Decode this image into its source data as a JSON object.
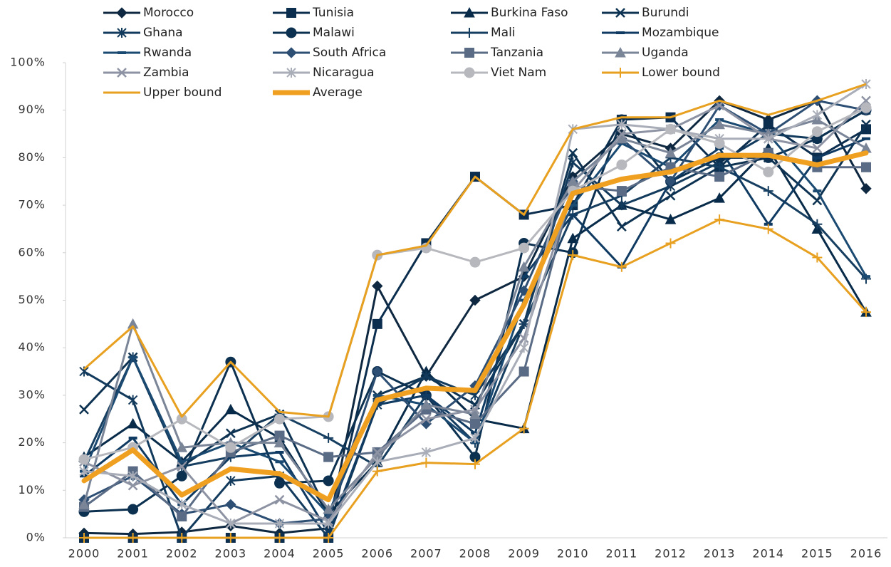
{
  "chart_data": {
    "type": "line",
    "categories": [
      "2000",
      "2001",
      "2002",
      "2003",
      "2004",
      "2005",
      "2006",
      "2007",
      "2008",
      "2009",
      "2010",
      "2011",
      "2012",
      "2013",
      "2014",
      "2015",
      "2016"
    ],
    "ylim": [
      0,
      100
    ],
    "yticks": [
      {
        "value": 0,
        "label": "0%"
      },
      {
        "value": 10,
        "label": "10%"
      },
      {
        "value": 20,
        "label": "20%"
      },
      {
        "value": 30,
        "label": "30%"
      },
      {
        "value": 40,
        "label": "40%"
      },
      {
        "value": 50,
        "label": "50%"
      },
      {
        "value": 60,
        "label": "60%"
      },
      {
        "value": 70,
        "label": "70%"
      },
      {
        "value": 80,
        "label": "80%"
      },
      {
        "value": 90,
        "label": "90%"
      },
      {
        "value": 100,
        "label": "100%"
      }
    ],
    "legend": "top",
    "series": [
      {
        "name": "Morocco",
        "color": "#0e2841",
        "marker": "diamond",
        "values": [
          1,
          0.8,
          1.2,
          2.5,
          1,
          2,
          53,
          34,
          50,
          55,
          76,
          85,
          82,
          92,
          88,
          92,
          73.5
        ]
      },
      {
        "name": "Tunisia",
        "color": "#0b2d4e",
        "marker": "square",
        "values": [
          0,
          0,
          0,
          0,
          0,
          0,
          45,
          62,
          76,
          68,
          70,
          88,
          88.5,
          78,
          87,
          80,
          86
        ]
      },
      {
        "name": "Burkina Faso",
        "color": "#082b4a",
        "marker": "triangle",
        "values": [
          17,
          24,
          16,
          27,
          21,
          5,
          16,
          35,
          25,
          23,
          63,
          70,
          67,
          71.5,
          82,
          65,
          47.5
        ]
      },
      {
        "name": "Burundi",
        "color": "#0e3352",
        "marker": "x",
        "values": [
          27,
          38,
          15,
          22,
          26,
          5,
          30,
          34,
          28,
          45,
          81,
          65.5,
          72,
          78,
          80,
          71,
          87
        ]
      },
      {
        "name": "Ghana",
        "color": "#123a5c",
        "marker": "asterisk",
        "values": [
          35,
          29,
          0,
          12,
          13,
          0,
          28,
          34,
          30,
          45,
          79,
          70,
          74,
          79,
          85,
          84,
          90
        ]
      },
      {
        "name": "Malawi",
        "color": "#0c3050",
        "marker": "circle",
        "values": [
          5.5,
          6,
          13,
          37,
          11.5,
          12,
          35,
          30,
          17,
          62,
          60,
          88,
          75,
          80,
          80,
          84,
          90
        ]
      },
      {
        "name": "Mali",
        "color": "#163e60",
        "marker": "plus",
        "values": [
          16,
          38,
          15,
          17,
          26,
          21,
          15,
          30,
          20,
          45,
          68,
          72,
          80,
          78,
          73,
          66,
          54.5
        ]
      },
      {
        "name": "Mozambique",
        "color": "#0f3a62",
        "marker": "dash",
        "values": [
          13,
          21,
          7,
          17,
          18,
          1,
          28,
          30,
          22,
          55,
          68,
          57,
          75,
          82,
          66,
          80,
          84
        ]
      },
      {
        "name": "Rwanda",
        "color": "#1a4a72",
        "marker": "dash",
        "values": [
          14,
          38,
          16,
          20,
          16,
          5,
          30,
          28,
          20,
          50,
          70,
          83,
          78,
          88,
          85,
          73,
          55
        ]
      },
      {
        "name": "South Africa",
        "color": "#2e4f74",
        "marker": "diamond",
        "values": [
          8,
          13,
          5,
          7,
          3,
          4,
          35,
          24,
          32,
          52,
          75,
          84,
          75,
          91,
          85,
          92,
          90
        ]
      },
      {
        "name": "Tanzania",
        "color": "#5a6b85",
        "marker": "square",
        "values": [
          6.5,
          14,
          4.5,
          18,
          21.5,
          17,
          18,
          27,
          24,
          35,
          74,
          73,
          78,
          76,
          81,
          78,
          78
        ]
      },
      {
        "name": "Uganda",
        "color": "#7a8598",
        "marker": "triangle",
        "values": [
          7,
          45,
          19,
          20,
          20,
          6,
          17,
          28,
          26,
          57,
          75,
          84,
          81,
          87,
          85,
          88,
          82
        ]
      },
      {
        "name": "Zambia",
        "color": "#8d93a3",
        "marker": "x",
        "values": [
          16,
          11,
          15,
          3,
          8,
          3.5,
          18,
          25,
          27,
          42,
          73,
          85,
          86,
          91,
          84,
          82,
          92
        ]
      },
      {
        "name": "Nicaragua",
        "color": "#a8adb8",
        "marker": "asterisk",
        "values": [
          14,
          13,
          7,
          3,
          3,
          3,
          16,
          18,
          21,
          40,
          86,
          87,
          86,
          84,
          84,
          89,
          95.5
        ]
      },
      {
        "name": "Viet Nam",
        "color": "#b6b8bd",
        "marker": "circle",
        "values": [
          16.5,
          19,
          25,
          19,
          25,
          25.5,
          59.5,
          61,
          58,
          61,
          73,
          78.5,
          86,
          83,
          77,
          85.5,
          90.5
        ]
      },
      {
        "name": "Lower bound",
        "color": "#e8a020",
        "marker": "plus",
        "values": [
          0,
          0,
          0,
          0,
          0,
          0,
          14,
          15.8,
          15.5,
          23,
          59.5,
          57,
          62,
          67,
          65,
          59,
          47.5
        ]
      },
      {
        "name": "Upper bound",
        "color": "#e8a020",
        "marker": "none",
        "values": [
          35.5,
          44.5,
          25.5,
          37,
          26.5,
          25.5,
          59.5,
          61.5,
          76,
          68,
          86,
          88.5,
          88.5,
          92,
          89,
          92,
          95.5
        ]
      },
      {
        "name": "Average",
        "color": "#f0a020",
        "marker": "thick",
        "values": [
          12,
          18.5,
          9,
          14.5,
          13.5,
          8,
          29,
          31.5,
          31,
          49,
          72.5,
          75.5,
          77,
          80.5,
          80.5,
          78.5,
          81
        ]
      }
    ]
  }
}
